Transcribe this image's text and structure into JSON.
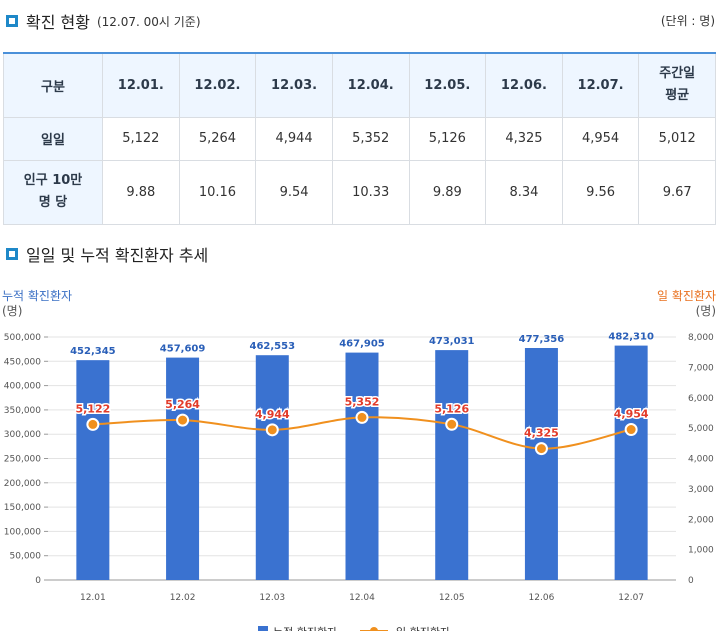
{
  "section1": {
    "title": "확진 현황",
    "subtitle": "(12.07. 00시 기준)",
    "unit": "(단위 : 명)"
  },
  "table": {
    "headers": [
      "구분",
      "12.01.",
      "12.02.",
      "12.03.",
      "12.04.",
      "12.05.",
      "12.06.",
      "12.07.",
      "주간일 평균"
    ],
    "rows": [
      {
        "label": "일일",
        "values": [
          "5,122",
          "5,264",
          "4,944",
          "5,352",
          "5,126",
          "4,325",
          "4,954",
          "5,012"
        ]
      },
      {
        "label": "인구 10만 명 당",
        "values": [
          "9.88",
          "10.16",
          "9.54",
          "10.33",
          "9.89",
          "8.34",
          "9.56",
          "9.67"
        ]
      }
    ]
  },
  "section2": {
    "title": "일일 및 누적 확진환자 추세"
  },
  "chart_data": {
    "type": "bar",
    "categories": [
      "12.01",
      "12.02",
      "12.03",
      "12.04",
      "12.05",
      "12.06",
      "12.07"
    ],
    "series": [
      {
        "name": "누적 확진환자",
        "type": "bar",
        "axis": "left",
        "color": "#3a72d0",
        "values": [
          452345,
          457609,
          462553,
          467905,
          473031,
          477356,
          482310
        ],
        "labels": [
          "452,345",
          "457,609",
          "462,553",
          "467,905",
          "473,031",
          "477,356",
          "482,310"
        ]
      },
      {
        "name": "일 확진환자",
        "type": "line",
        "axis": "right",
        "color": "#f0901e",
        "values": [
          5122,
          5264,
          4944,
          5352,
          5126,
          4325,
          4954
        ],
        "labels": [
          "5,122",
          "5,264",
          "4,944",
          "5,352",
          "5,126",
          "4,325",
          "4,954"
        ]
      }
    ],
    "left_axis": {
      "title": "누적 확진환자",
      "unit": "(명)",
      "min": 0,
      "max": 500000,
      "step": 50000,
      "ticks": [
        "0",
        "50,000",
        "100,000",
        "150,000",
        "200,000",
        "250,000",
        "300,000",
        "350,000",
        "400,000",
        "450,000",
        "500,000"
      ]
    },
    "right_axis": {
      "title": "일 확진환자",
      "unit": "(명)",
      "min": 0,
      "max": 8000,
      "step": 1000,
      "ticks": [
        "0",
        "1,000",
        "2,000",
        "3,000",
        "4,000",
        "5,000",
        "6,000",
        "7,000",
        "8,000"
      ]
    },
    "colors": {
      "bar": "#3a72d0",
      "line": "#f0901e",
      "left_title": "#3a6fc4",
      "right_title": "#e8701e",
      "line_label": "#e23b2a"
    }
  }
}
